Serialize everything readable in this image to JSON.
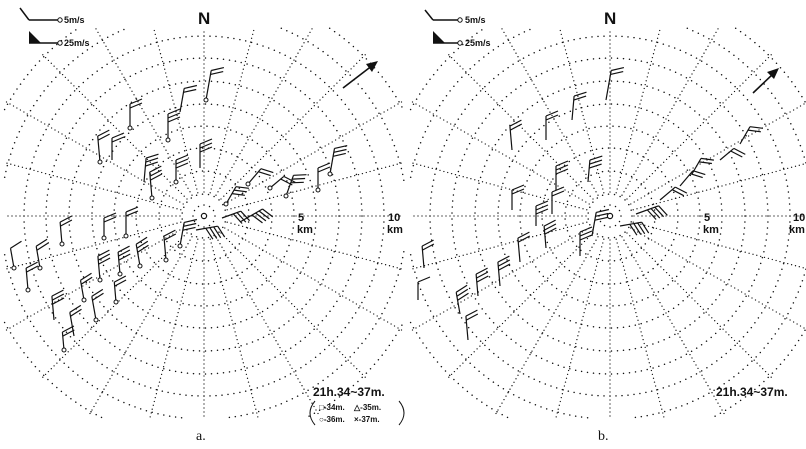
{
  "panels": [
    {
      "id": "a",
      "north_label": "N",
      "legend": [
        {
          "label": "5m/s"
        },
        {
          "label": "25m/s"
        }
      ],
      "range_labels": [
        {
          "value": "5",
          "unit": "km"
        },
        {
          "value": "10",
          "unit": "km"
        }
      ],
      "time_label": "21h.34~37m.",
      "symbol_key": [
        {
          "label": "□-34m."
        },
        {
          "label": "△-35m."
        },
        {
          "label": "○-36m."
        },
        {
          "label": "×-37m."
        }
      ],
      "caption": "a."
    },
    {
      "id": "b",
      "north_label": "N",
      "legend": [
        {
          "label": "5m/s"
        },
        {
          "label": "25m/s"
        }
      ],
      "range_labels": [
        {
          "value": "5",
          "unit": "km"
        },
        {
          "value": "10",
          "unit": "km"
        }
      ],
      "time_label": "21h.34~37m.",
      "caption": "b."
    }
  ],
  "colors": {
    "ink": "#111111",
    "background": "#ffffff"
  }
}
